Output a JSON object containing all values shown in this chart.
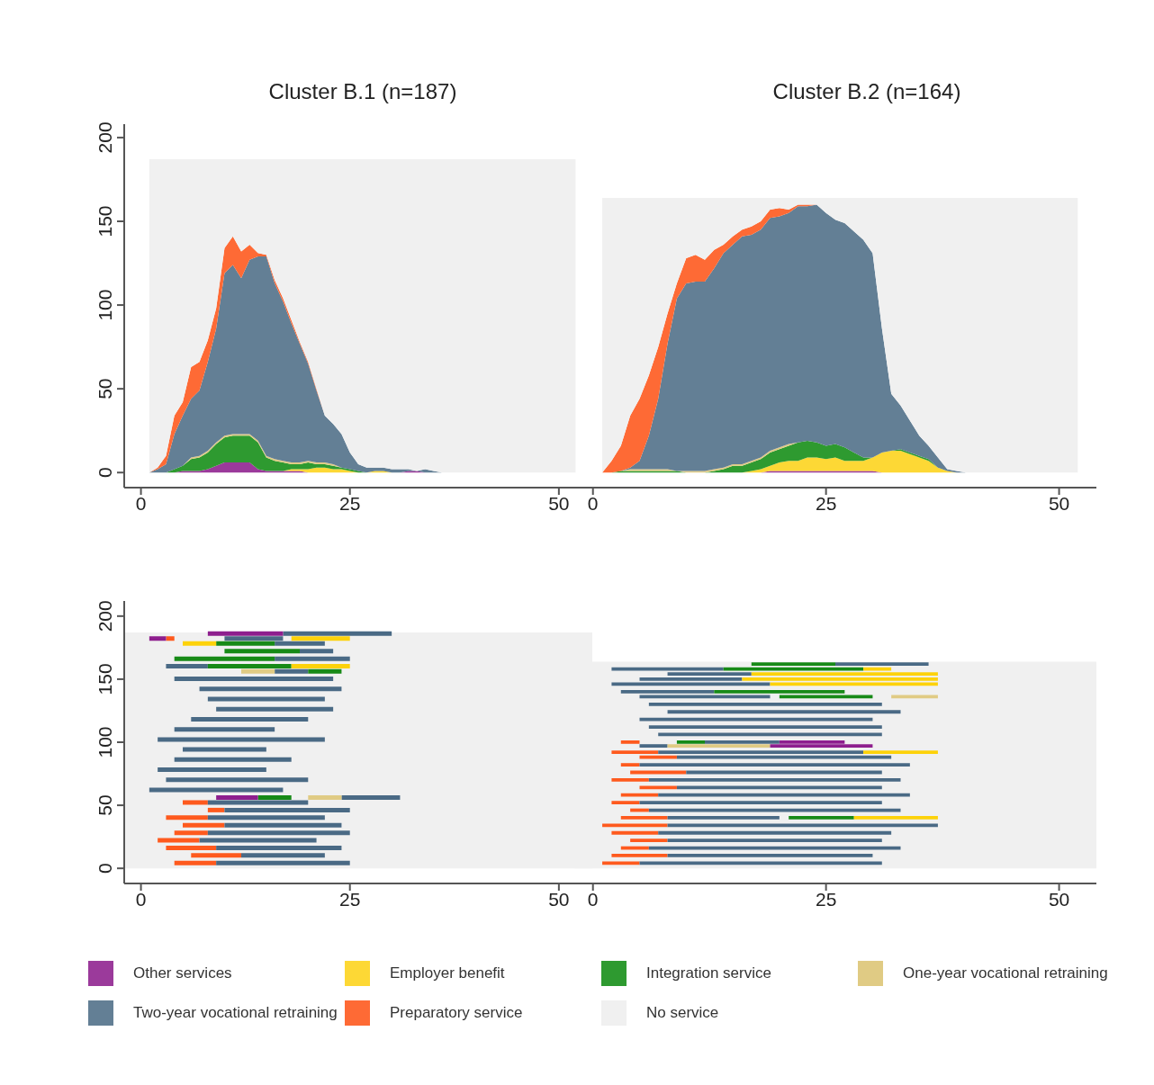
{
  "chart_data": [
    {
      "type": "area",
      "title": "Cluster B.1 (n=187)",
      "stacked": true,
      "legend": "bottom",
      "xlim": [
        -2,
        54
      ],
      "xticks": [
        0,
        25,
        50
      ],
      "ylim": [
        -9,
        208
      ],
      "yticks": [
        0,
        50,
        100,
        150,
        200
      ],
      "x": [
        1,
        2,
        3,
        4,
        5,
        6,
        7,
        8,
        9,
        10,
        11,
        12,
        13,
        14,
        15,
        16,
        17,
        18,
        19,
        20,
        21,
        22,
        23,
        24,
        25,
        26,
        27,
        28,
        29,
        30,
        31,
        32,
        33,
        34,
        35,
        36,
        52
      ],
      "series": [
        {
          "name": "Other services",
          "color": "#9b3a9b",
          "values": [
            null,
            null,
            null,
            0,
            1,
            1,
            1,
            2,
            4,
            6,
            6,
            6,
            6,
            2,
            1,
            1,
            1,
            1,
            1,
            0,
            null,
            null,
            null,
            null,
            null,
            null,
            null,
            null,
            null,
            null,
            0,
            1,
            1,
            0,
            null,
            null,
            null
          ]
        },
        {
          "name": "Employer benefit",
          "color": "#fdd835",
          "values": [
            null,
            null,
            null,
            null,
            null,
            null,
            null,
            null,
            null,
            null,
            null,
            null,
            null,
            null,
            null,
            null,
            0,
            1,
            1,
            2,
            3,
            3,
            2,
            2,
            1,
            0,
            0,
            1,
            1,
            0,
            null,
            null,
            null,
            null,
            null,
            null,
            null
          ]
        },
        {
          "name": "Integration service",
          "color": "#2e9a30",
          "values": [
            null,
            null,
            0,
            2,
            3,
            7,
            8,
            10,
            13,
            15,
            16,
            16,
            16,
            16,
            8,
            6,
            5,
            3,
            3,
            4,
            2,
            2,
            2,
            1,
            1,
            1,
            0,
            null,
            null,
            null,
            null,
            null,
            null,
            null,
            null,
            null,
            null
          ]
        },
        {
          "name": "One-year vocational retraining",
          "color": "#e0cb84",
          "values": [
            null,
            null,
            null,
            null,
            0,
            1,
            1,
            1,
            1,
            1,
            1,
            1,
            1,
            1,
            1,
            1,
            1,
            1,
            1,
            1,
            1,
            1,
            1,
            0,
            null,
            null,
            null,
            null,
            null,
            null,
            null,
            null,
            null,
            null,
            null,
            null,
            null
          ]
        },
        {
          "name": "Two-year vocational retraining",
          "color": "#637f95",
          "values": [
            0,
            2,
            5,
            21,
            30,
            35,
            39,
            53,
            68,
            97,
            101,
            93,
            104,
            110,
            119,
            105,
            95,
            83,
            71,
            58,
            43,
            28,
            24,
            20,
            10,
            4,
            3,
            2,
            2,
            2,
            2,
            1,
            0,
            2,
            1,
            0,
            null
          ]
        },
        {
          "name": "Preparatory service",
          "color": "#fe6a35",
          "values": [
            0,
            1,
            5,
            11,
            8,
            19,
            17,
            13,
            12,
            15,
            17,
            16,
            9,
            2,
            1,
            2,
            2,
            2,
            1,
            1,
            1,
            0,
            null,
            null,
            null,
            null,
            null,
            null,
            null,
            null,
            null,
            null,
            null,
            null,
            null,
            null,
            null
          ]
        },
        {
          "name": "No service",
          "color": "#f0f0f0",
          "values": [
            187,
            184,
            177,
            153,
            145,
            124,
            121,
            108,
            89,
            53,
            46,
            55,
            51,
            56,
            57,
            72,
            83,
            96,
            109,
            121,
            137,
            153,
            158,
            164,
            175,
            182,
            184,
            184,
            184,
            185,
            185,
            185,
            186,
            185,
            186,
            187,
            187
          ]
        }
      ]
    },
    {
      "type": "area",
      "title": "Cluster B.2 (n=164)",
      "stacked": true,
      "tick_labels": "x",
      "xlim": [
        -2,
        54
      ],
      "xticks": [
        0,
        25,
        50
      ],
      "ylim": [
        -9,
        200
      ],
      "yticks": [
        0,
        50,
        100,
        150,
        200
      ],
      "x": [
        1,
        2,
        3,
        4,
        5,
        6,
        7,
        8,
        9,
        10,
        11,
        12,
        13,
        14,
        15,
        16,
        17,
        18,
        19,
        20,
        21,
        22,
        23,
        24,
        25,
        26,
        27,
        28,
        29,
        30,
        31,
        32,
        33,
        34,
        35,
        36,
        37,
        38,
        39,
        40,
        52
      ],
      "series": [
        {
          "color": "#9b3a9b",
          "values": [
            null,
            null,
            null,
            null,
            null,
            null,
            null,
            null,
            null,
            null,
            null,
            null,
            null,
            null,
            null,
            null,
            null,
            0,
            1,
            1,
            1,
            1,
            1,
            1,
            1,
            1,
            1,
            1,
            1,
            1,
            0,
            null,
            null,
            null,
            null,
            null,
            null,
            null,
            null,
            null,
            null
          ]
        },
        {
          "color": "#fdd835",
          "values": [
            null,
            null,
            null,
            null,
            null,
            null,
            null,
            null,
            null,
            null,
            null,
            null,
            null,
            null,
            null,
            0,
            1,
            2,
            3,
            5,
            6,
            6,
            8,
            8,
            7,
            8,
            6,
            6,
            6,
            8,
            12,
            13,
            13,
            11,
            9,
            7,
            3,
            1,
            0,
            null,
            null
          ]
        },
        {
          "color": "#2e9a30",
          "values": [
            null,
            0,
            1,
            1,
            1,
            1,
            1,
            1,
            1,
            0,
            0,
            0,
            1,
            2,
            4,
            4,
            5,
            6,
            8,
            8,
            9,
            11,
            10,
            9,
            8,
            8,
            8,
            5,
            2,
            0,
            0,
            0,
            1,
            1,
            1,
            1,
            0,
            null,
            null,
            null,
            null
          ]
        },
        {
          "color": "#e0cb84",
          "values": [
            null,
            null,
            0,
            1,
            1,
            1,
            1,
            1,
            0,
            1,
            1,
            1,
            1,
            1,
            1,
            1,
            1,
            1,
            1,
            1,
            1,
            0,
            null,
            null,
            null,
            null,
            null,
            null,
            null,
            null,
            null,
            null,
            null,
            null,
            null,
            null,
            null,
            null,
            null,
            null,
            null
          ]
        },
        {
          "color": "#637f95",
          "values": [
            null,
            null,
            0,
            1,
            5,
            20,
            42,
            75,
            103,
            112,
            113,
            113,
            120,
            128,
            131,
            136,
            135,
            136,
            139,
            138,
            138,
            141,
            140,
            142,
            139,
            134,
            134,
            132,
            130,
            122,
            74,
            34,
            26,
            19,
            12,
            8,
            6,
            1,
            1,
            0,
            null
          ]
        },
        {
          "color": "#fe6a35",
          "values": [
            0,
            7,
            15,
            31,
            37,
            36,
            31,
            18,
            9,
            15,
            16,
            13,
            11,
            5,
            5,
            4,
            5,
            5,
            5,
            5,
            2,
            1,
            1,
            0,
            null,
            null,
            null,
            null,
            null,
            null,
            null,
            null,
            null,
            null,
            null,
            null,
            null,
            null,
            null,
            null,
            null
          ]
        },
        {
          "color": "#f0f0f0",
          "values": [
            164,
            157,
            148,
            130,
            120,
            106,
            89,
            69,
            51,
            36,
            34,
            37,
            31,
            28,
            23,
            19,
            17,
            14,
            7,
            6,
            7,
            4,
            4,
            4,
            9,
            13,
            15,
            20,
            25,
            33,
            78,
            117,
            124,
            133,
            142,
            148,
            155,
            162,
            163,
            164,
            164
          ]
        }
      ]
    },
    {
      "type": "bar",
      "orientation": "horizontal",
      "xlim": [
        -2,
        54
      ],
      "xticks": [
        0,
        25,
        50
      ],
      "ylim": [
        -12,
        212
      ],
      "yticks": [
        0,
        50,
        100,
        150,
        200
      ],
      "bands": [
        {
          "axis": "y",
          "from": 0,
          "to": 187,
          "color": "#f0f0f0"
        }
      ],
      "x": [
        4,
        10,
        16,
        22,
        28,
        34,
        40,
        46,
        52,
        56,
        62,
        70,
        78,
        86,
        94,
        102,
        110,
        118,
        126,
        134,
        142,
        150,
        156,
        160,
        166,
        172,
        178,
        182,
        186
      ],
      "series": [
        {
          "color": "#fe5a1e",
          "base": [
            4,
            6,
            3,
            2,
            4,
            5,
            3,
            8,
            5,
            null,
            null,
            null,
            null,
            null,
            null,
            null,
            null,
            null,
            null,
            null,
            null,
            null,
            null,
            null,
            null,
            null,
            null,
            3,
            null
          ],
          "values": [
            5,
            6,
            6,
            5,
            4,
            5,
            5,
            2,
            3,
            null,
            null,
            null,
            null,
            null,
            null,
            null,
            null,
            null,
            null,
            null,
            null,
            null,
            null,
            null,
            null,
            null,
            null,
            1,
            null
          ]
        },
        {
          "color": "#4a6a85",
          "base": [
            9,
            12,
            9,
            7,
            8,
            10,
            8,
            10,
            8,
            24,
            1,
            3,
            2,
            4,
            5,
            2,
            4,
            6,
            9,
            8,
            7,
            4,
            16,
            3,
            16,
            19,
            16,
            10,
            17
          ],
          "values": [
            16,
            10,
            15,
            14,
            17,
            14,
            14,
            15,
            12,
            7,
            16,
            17,
            13,
            14,
            10,
            20,
            12,
            14,
            14,
            14,
            17,
            19,
            4,
            5,
            9,
            4,
            6,
            7,
            13
          ]
        },
        {
          "color": "#178a17",
          "base": [
            null,
            null,
            null,
            null,
            null,
            null,
            null,
            null,
            null,
            14,
            null,
            null,
            null,
            null,
            null,
            null,
            null,
            null,
            null,
            null,
            null,
            null,
            20,
            8,
            4,
            10,
            9,
            null,
            null
          ],
          "values": [
            null,
            null,
            null,
            null,
            null,
            null,
            null,
            null,
            null,
            4,
            null,
            null,
            null,
            null,
            null,
            null,
            null,
            null,
            null,
            null,
            null,
            null,
            4,
            10,
            12,
            9,
            7,
            null,
            null
          ]
        },
        {
          "color": "#fdd20a",
          "base": [
            null,
            null,
            null,
            null,
            null,
            null,
            null,
            null,
            null,
            null,
            null,
            null,
            null,
            null,
            null,
            null,
            null,
            null,
            null,
            null,
            null,
            null,
            null,
            18,
            null,
            null,
            5,
            18,
            null
          ],
          "values": [
            null,
            null,
            null,
            null,
            null,
            null,
            null,
            null,
            null,
            null,
            null,
            null,
            null,
            null,
            null,
            null,
            null,
            null,
            null,
            null,
            null,
            null,
            null,
            7,
            null,
            null,
            4,
            7,
            null
          ]
        },
        {
          "color": "#e0cb84",
          "base": [
            null,
            null,
            null,
            null,
            null,
            null,
            null,
            null,
            null,
            20,
            null,
            null,
            null,
            null,
            null,
            null,
            null,
            null,
            null,
            null,
            null,
            null,
            12,
            null,
            null,
            null,
            null,
            null,
            null
          ],
          "values": [
            null,
            null,
            null,
            null,
            null,
            null,
            null,
            null,
            null,
            4,
            null,
            null,
            null,
            null,
            null,
            null,
            null,
            null,
            null,
            null,
            null,
            null,
            4,
            null,
            null,
            null,
            null,
            null,
            null
          ]
        },
        {
          "color": "#8e1f8e",
          "base": [
            null,
            null,
            null,
            null,
            null,
            null,
            null,
            null,
            null,
            9,
            null,
            null,
            null,
            null,
            null,
            null,
            null,
            null,
            null,
            null,
            null,
            null,
            null,
            null,
            null,
            null,
            null,
            1,
            8
          ],
          "values": [
            null,
            null,
            null,
            null,
            null,
            null,
            null,
            null,
            null,
            5,
            null,
            null,
            null,
            null,
            null,
            null,
            null,
            null,
            null,
            null,
            null,
            null,
            null,
            null,
            null,
            null,
            null,
            2,
            9
          ]
        }
      ]
    },
    {
      "type": "bar",
      "orientation": "horizontal",
      "tick_labels": "x",
      "xlim": [
        -2,
        54
      ],
      "xticks": [
        0,
        25,
        50
      ],
      "ylim": [
        -12,
        200
      ],
      "yticks": [
        0,
        50,
        100,
        150,
        200
      ],
      "bands": [
        {
          "axis": "y",
          "from": 0,
          "to": 164,
          "color": "#f0f0f0"
        }
      ],
      "x": [
        4,
        10,
        16,
        22,
        28,
        34,
        40,
        46,
        52,
        58,
        64,
        70,
        76,
        82,
        88,
        92,
        97,
        100,
        106,
        112,
        118,
        124,
        130,
        136,
        140,
        146,
        150,
        154,
        158,
        162
      ],
      "series": [
        {
          "color": "#fe5a1e",
          "base": [
            1,
            2,
            3,
            4,
            2,
            1,
            3,
            4,
            2,
            3,
            5,
            2,
            4,
            3,
            5,
            2,
            null,
            3,
            null,
            null,
            null,
            null,
            null,
            null,
            null,
            null,
            null,
            null,
            null,
            null
          ],
          "values": [
            4,
            6,
            3,
            4,
            5,
            7,
            5,
            2,
            3,
            4,
            4,
            4,
            6,
            2,
            4,
            5,
            null,
            2,
            null,
            null,
            null,
            null,
            null,
            null,
            null,
            null,
            null,
            null,
            null,
            null
          ]
        },
        {
          "color": "#4a6a85",
          "base": [
            5,
            8,
            6,
            8,
            7,
            8,
            8,
            6,
            5,
            7,
            9,
            6,
            10,
            5,
            9,
            7,
            5,
            12,
            7,
            6,
            5,
            8,
            6,
            5,
            3,
            2,
            5,
            8,
            2,
            26
          ],
          "values": [
            26,
            22,
            27,
            23,
            25,
            29,
            12,
            27,
            26,
            27,
            22,
            27,
            21,
            29,
            23,
            22,
            3,
            8,
            24,
            25,
            25,
            25,
            25,
            14,
            10,
            17,
            11,
            9,
            12,
            10
          ]
        },
        {
          "color": "#178a17",
          "base": [
            null,
            null,
            null,
            null,
            null,
            null,
            21,
            null,
            null,
            null,
            null,
            null,
            null,
            null,
            null,
            null,
            null,
            9,
            null,
            null,
            null,
            null,
            null,
            20,
            13,
            null,
            null,
            null,
            14,
            17
          ],
          "values": [
            null,
            null,
            null,
            null,
            null,
            null,
            7,
            null,
            null,
            null,
            null,
            null,
            null,
            null,
            null,
            null,
            null,
            3,
            null,
            null,
            null,
            null,
            null,
            10,
            14,
            null,
            null,
            null,
            15,
            9
          ]
        },
        {
          "color": "#fdd20a",
          "base": [
            null,
            null,
            null,
            null,
            null,
            null,
            28,
            null,
            null,
            null,
            null,
            null,
            null,
            null,
            null,
            29,
            null,
            null,
            null,
            null,
            null,
            null,
            null,
            null,
            null,
            19,
            16,
            17,
            29,
            null
          ],
          "values": [
            null,
            null,
            null,
            null,
            null,
            null,
            9,
            null,
            null,
            null,
            null,
            null,
            null,
            null,
            null,
            8,
            null,
            null,
            null,
            null,
            null,
            null,
            null,
            null,
            null,
            18,
            21,
            20,
            3,
            null
          ]
        },
        {
          "color": "#e0cb84",
          "base": [
            null,
            null,
            null,
            null,
            null,
            null,
            null,
            null,
            null,
            null,
            null,
            null,
            null,
            null,
            null,
            null,
            8,
            null,
            null,
            null,
            null,
            null,
            null,
            32,
            null,
            null,
            null,
            null,
            null,
            null
          ],
          "values": [
            null,
            null,
            null,
            null,
            null,
            null,
            null,
            null,
            null,
            null,
            null,
            null,
            null,
            null,
            null,
            null,
            11,
            null,
            null,
            null,
            null,
            null,
            null,
            5,
            null,
            null,
            null,
            null,
            null,
            null
          ]
        },
        {
          "color": "#8e1f8e",
          "base": [
            null,
            null,
            null,
            null,
            null,
            null,
            null,
            null,
            null,
            null,
            null,
            null,
            null,
            null,
            null,
            null,
            19,
            20,
            null,
            null,
            null,
            null,
            null,
            null,
            null,
            null,
            null,
            null,
            null,
            null
          ],
          "values": [
            null,
            null,
            null,
            null,
            null,
            null,
            null,
            null,
            null,
            null,
            null,
            null,
            null,
            null,
            null,
            null,
            11,
            7,
            null,
            null,
            null,
            null,
            null,
            null,
            null,
            null,
            null,
            null,
            null,
            null
          ]
        }
      ]
    }
  ]
}
